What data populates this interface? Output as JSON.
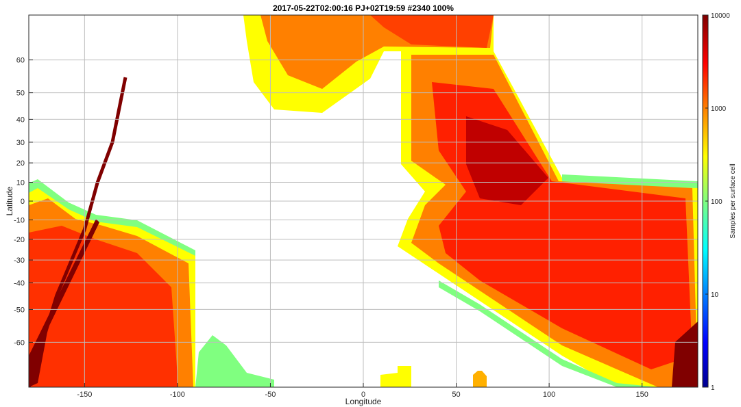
{
  "chart_data": {
    "type": "heatmap",
    "title": "2017-05-22T02:00:16  PJ+02T19:59 #2340 100%",
    "xlabel": "Longitude",
    "ylabel": "Latitude",
    "xlim": [
      -180,
      180
    ],
    "ylim": [
      -70,
      70
    ],
    "grid": true,
    "x_ticks": [
      -150,
      -100,
      -50,
      0,
      50,
      100,
      150
    ],
    "y_ticks": [
      60,
      50,
      40,
      30,
      20,
      10,
      0,
      -10,
      -20,
      -30,
      -40,
      -50,
      -60
    ],
    "colorbar": {
      "label": "Samples per surface cell",
      "scale": "log",
      "range": [
        1,
        10000
      ],
      "ticks": [
        "10000",
        "1000",
        "100",
        "10",
        "1"
      ],
      "colormap": [
        "#00008f",
        "#0000ff",
        "#0080ff",
        "#00ffff",
        "#80ff80",
        "#ffff00",
        "#ff8000",
        "#ff0000",
        "#800000"
      ]
    },
    "regions": [
      {
        "name": "south-west-block",
        "lon_range": [
          -180,
          -92
        ],
        "lat_range": [
          -70,
          10
        ],
        "level": "1000-10000"
      },
      {
        "name": "north-central-fan",
        "lon_range": [
          -65,
          70
        ],
        "lat_range": [
          45,
          70
        ],
        "level": "300-5000"
      },
      {
        "name": "central-east-swath",
        "lon_range": [
          10,
          180
        ],
        "lat_range": [
          -70,
          45
        ],
        "level": "1000-10000"
      },
      {
        "name": "south-patches",
        "lon_range": [
          -95,
          70
        ],
        "lat_range": [
          -70,
          -55
        ],
        "level": "200-1000"
      }
    ],
    "track": {
      "description": "high-density ground track",
      "points": [
        [
          -128,
          55
        ],
        [
          -135,
          30
        ],
        [
          -143,
          10
        ],
        [
          -150,
          -15
        ],
        [
          -165,
          -45
        ],
        [
          -180,
          -70
        ]
      ],
      "level": "10000"
    }
  }
}
